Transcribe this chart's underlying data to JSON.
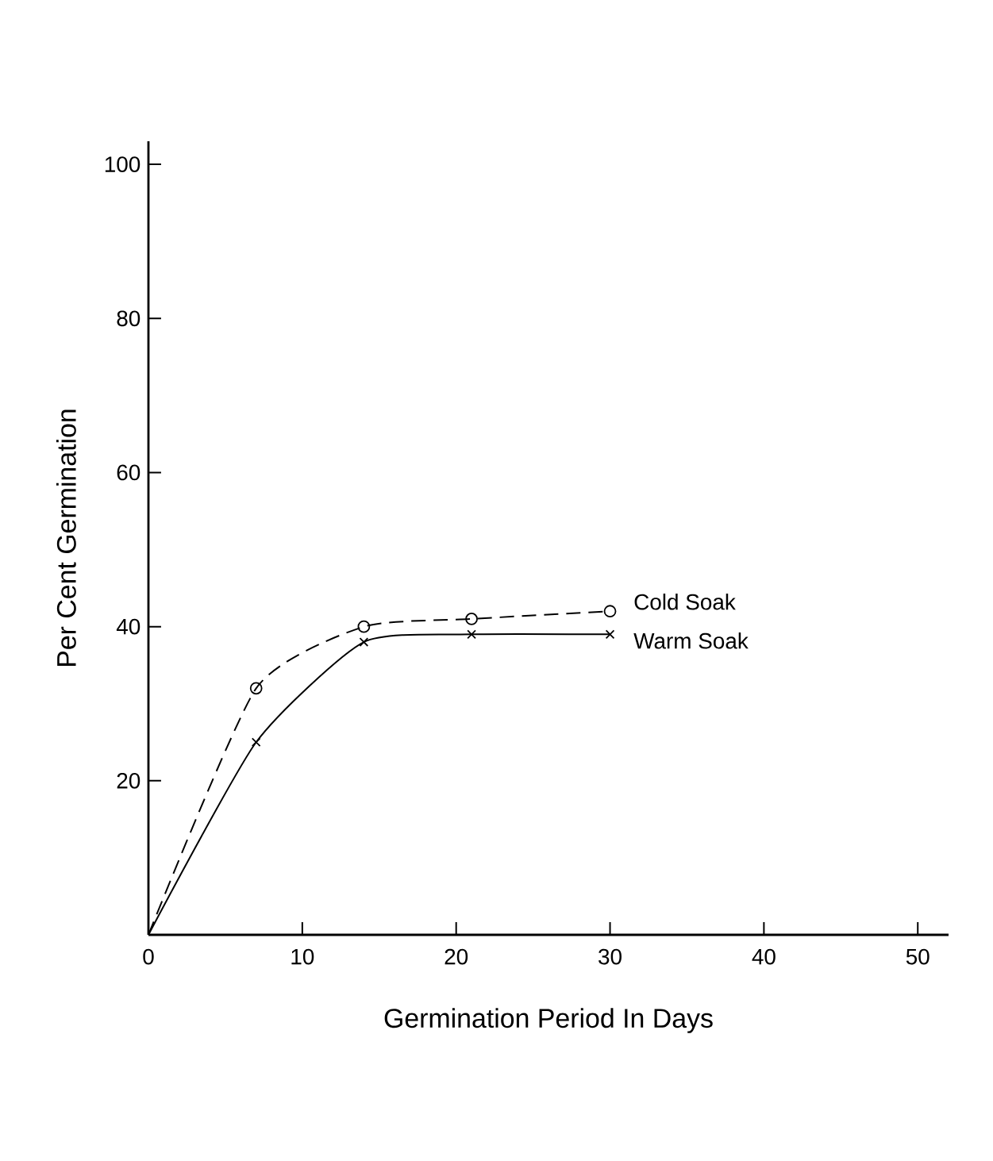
{
  "chart_data": {
    "type": "line",
    "xlabel": "Germination Period In Days",
    "ylabel": "Per Cent Germination",
    "xlim": [
      0,
      52
    ],
    "ylim": [
      0,
      103
    ],
    "xticks": [
      0,
      10,
      20,
      30,
      40,
      50
    ],
    "yticks": [
      20,
      40,
      60,
      80,
      100
    ],
    "grid": false,
    "legend": false,
    "series": [
      {
        "name": "Cold Soak",
        "color": "#000000",
        "x": [
          0,
          7,
          14,
          21,
          30
        ],
        "values": [
          0,
          32,
          40,
          41,
          42
        ],
        "marker": "circle",
        "line_style": "dashed"
      },
      {
        "name": "Warm Soak",
        "color": "#000000",
        "x": [
          0,
          7,
          14,
          21,
          30
        ],
        "values": [
          0,
          25,
          38,
          39,
          39
        ],
        "marker": "cross",
        "line_style": "solid"
      }
    ]
  }
}
